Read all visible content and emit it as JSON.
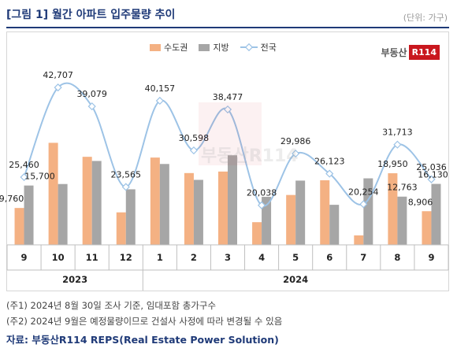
{
  "header": {
    "title": "[그림 1] 월간 아파트 입주물량 추이",
    "unit": "(단위: 가구)"
  },
  "logo": {
    "text": "부동산",
    "badge": "R114"
  },
  "watermark": {
    "text": "부동산R114"
  },
  "colors": {
    "capital": "#f4b183",
    "region": "#a6a6a6",
    "national": "#9dc3e6"
  },
  "chart_data": {
    "type": "bar",
    "categories": [
      "9",
      "10",
      "11",
      "12",
      "1",
      "2",
      "3",
      "4",
      "5",
      "6",
      "7",
      "8",
      "9"
    ],
    "year_groups": [
      {
        "label": "2023",
        "count": 4
      },
      {
        "label": "2024",
        "count": 9
      }
    ],
    "series": [
      {
        "name": "수도권",
        "type": "bar",
        "values": [
          9760,
          27000,
          23300,
          8600,
          23100,
          19000,
          19400,
          6000,
          13200,
          17100,
          2500,
          18950,
          8906
        ]
      },
      {
        "name": "지방",
        "type": "bar",
        "values": [
          15700,
          16100,
          22200,
          14700,
          21400,
          17200,
          23700,
          12700,
          17000,
          10600,
          17600,
          12763,
          16130
        ]
      },
      {
        "name": "전국",
        "type": "line",
        "values": [
          25460,
          42707,
          39079,
          23565,
          40157,
          30598,
          38477,
          20038,
          29986,
          26123,
          20254,
          31713,
          25036
        ]
      }
    ],
    "data_labels": {
      "bars": [
        {
          "index": 0,
          "series": 0,
          "text": "9,760"
        },
        {
          "index": 0,
          "series": 1,
          "text": "15,700"
        },
        {
          "index": 11,
          "series": 0,
          "text": "18,950"
        },
        {
          "index": 11,
          "series": 1,
          "text": "12,763"
        },
        {
          "index": 12,
          "series": 0,
          "text": "8,906"
        },
        {
          "index": 12,
          "series": 1,
          "text": "16,130"
        }
      ],
      "line": [
        "25,460",
        "42,707",
        "39,079",
        "23,565",
        "40,157",
        "30,598",
        "38,477",
        "20,038",
        "29,986",
        "26,123",
        "20,254",
        "31,713",
        "25,036"
      ]
    },
    "grid": false,
    "legend_position": "top-center"
  },
  "notes": [
    "(주1) 2024년 8월 30일 조사 기준, 임대포함 총가구수",
    "(주2) 2024년 9월은 예정물량이므로 건설사 사정에 따라 변경될 수 있음"
  ],
  "source": "자료: 부동산R114 REPS(Real Estate Power Solution)"
}
